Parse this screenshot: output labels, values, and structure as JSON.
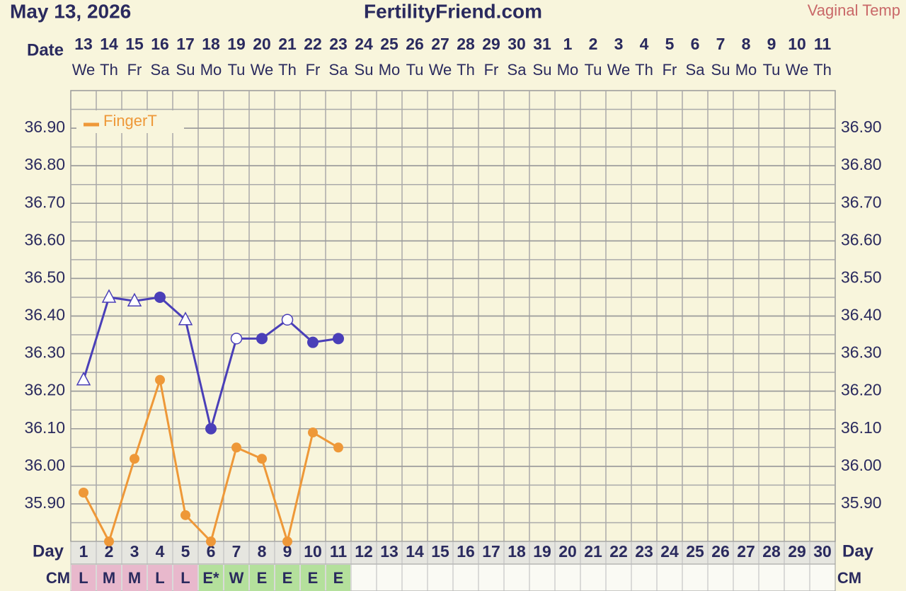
{
  "chart_data": {
    "type": "line",
    "date_text": "May 13, 2026",
    "title": "FertilityFriend.com",
    "date_label": "Date",
    "day_label": "Day",
    "cm_label": "CM",
    "dates": [
      "13",
      "14",
      "15",
      "16",
      "17",
      "18",
      "19",
      "20",
      "21",
      "22",
      "23",
      "24",
      "25",
      "26",
      "27",
      "28",
      "29",
      "30",
      "31",
      "1",
      "2",
      "3",
      "4",
      "5",
      "6",
      "7",
      "8",
      "9",
      "10",
      "11"
    ],
    "weekdays": [
      "We",
      "Th",
      "Fr",
      "Sa",
      "Su",
      "Mo",
      "Tu",
      "We",
      "Th",
      "Fr",
      "Sa",
      "Su",
      "Mo",
      "Tu",
      "We",
      "Th",
      "Fr",
      "Sa",
      "Su",
      "Mo",
      "Tu",
      "We",
      "Th",
      "Fr",
      "Sa",
      "Su",
      "Mo",
      "Tu",
      "We",
      "Th"
    ],
    "categories": [
      "1",
      "2",
      "3",
      "4",
      "5",
      "6",
      "7",
      "8",
      "9",
      "10",
      "11",
      "12",
      "13",
      "14",
      "15",
      "16",
      "17",
      "18",
      "19",
      "20",
      "21",
      "22",
      "23",
      "24",
      "25",
      "26",
      "27",
      "28",
      "29",
      "30"
    ],
    "cm": [
      "L",
      "M",
      "M",
      "L",
      "L",
      "E*",
      "W",
      "E",
      "E",
      "E",
      "E",
      null,
      null,
      null,
      null,
      null,
      null,
      null,
      null,
      null,
      null,
      null,
      null,
      null,
      null,
      null,
      null,
      null,
      null,
      null
    ],
    "cm_colors": {
      "L": "#e8b8cc",
      "M": "#e8b8cc",
      "E*": "#b4e09c",
      "W": "#b4e09c",
      "E": "#b4e09c"
    },
    "series": [
      {
        "name": "Vaginal Temp",
        "color": "#4a3fb8",
        "values": [
          36.23,
          36.45,
          36.44,
          36.45,
          36.39,
          36.1,
          36.34,
          36.34,
          36.39,
          36.33,
          36.34,
          null,
          null,
          null,
          null,
          null,
          null,
          null,
          null,
          null,
          null,
          null,
          null,
          null,
          null,
          null,
          null,
          null,
          null,
          null
        ],
        "markers": [
          "triangle",
          "triangle",
          "triangle",
          "circle",
          "triangle",
          "circle",
          "open-circle",
          "circle",
          "open-circle",
          "circle",
          "circle",
          null,
          null,
          null,
          null,
          null,
          null,
          null,
          null,
          null,
          null,
          null,
          null,
          null,
          null,
          null,
          null,
          null,
          null,
          null
        ]
      },
      {
        "name": "FingerT",
        "color": "#ee9838",
        "values": [
          35.93,
          35.8,
          36.02,
          36.23,
          35.87,
          35.8,
          36.05,
          36.02,
          35.8,
          36.09,
          36.05,
          null,
          null,
          null,
          null,
          null,
          null,
          null,
          null,
          null,
          null,
          null,
          null,
          null,
          null,
          null,
          null,
          null,
          null,
          null
        ],
        "markers": [
          "circle",
          "circle",
          "circle",
          "circle",
          "circle",
          "circle",
          "circle",
          "circle",
          "circle",
          "circle",
          "circle",
          null,
          null,
          null,
          null,
          null,
          null,
          null,
          null,
          null,
          null,
          null,
          null,
          null,
          null,
          null,
          null,
          null,
          null,
          null
        ]
      }
    ],
    "ylim": [
      35.8,
      37.0
    ],
    "yticks": [
      {
        "value": 35.9,
        "label": "35.90"
      },
      {
        "value": 36.0,
        "label": "36.00"
      },
      {
        "value": 36.1,
        "label": "36.10"
      },
      {
        "value": 36.2,
        "label": "36.20"
      },
      {
        "value": 36.3,
        "label": "36.30"
      },
      {
        "value": 36.4,
        "label": "36.40"
      },
      {
        "value": 36.5,
        "label": "36.50"
      },
      {
        "value": 36.6,
        "label": "36.60"
      },
      {
        "value": 36.7,
        "label": "36.70"
      },
      {
        "value": 36.8,
        "label": "36.80"
      },
      {
        "value": 36.9,
        "label": "36.90"
      }
    ],
    "grid": true
  }
}
